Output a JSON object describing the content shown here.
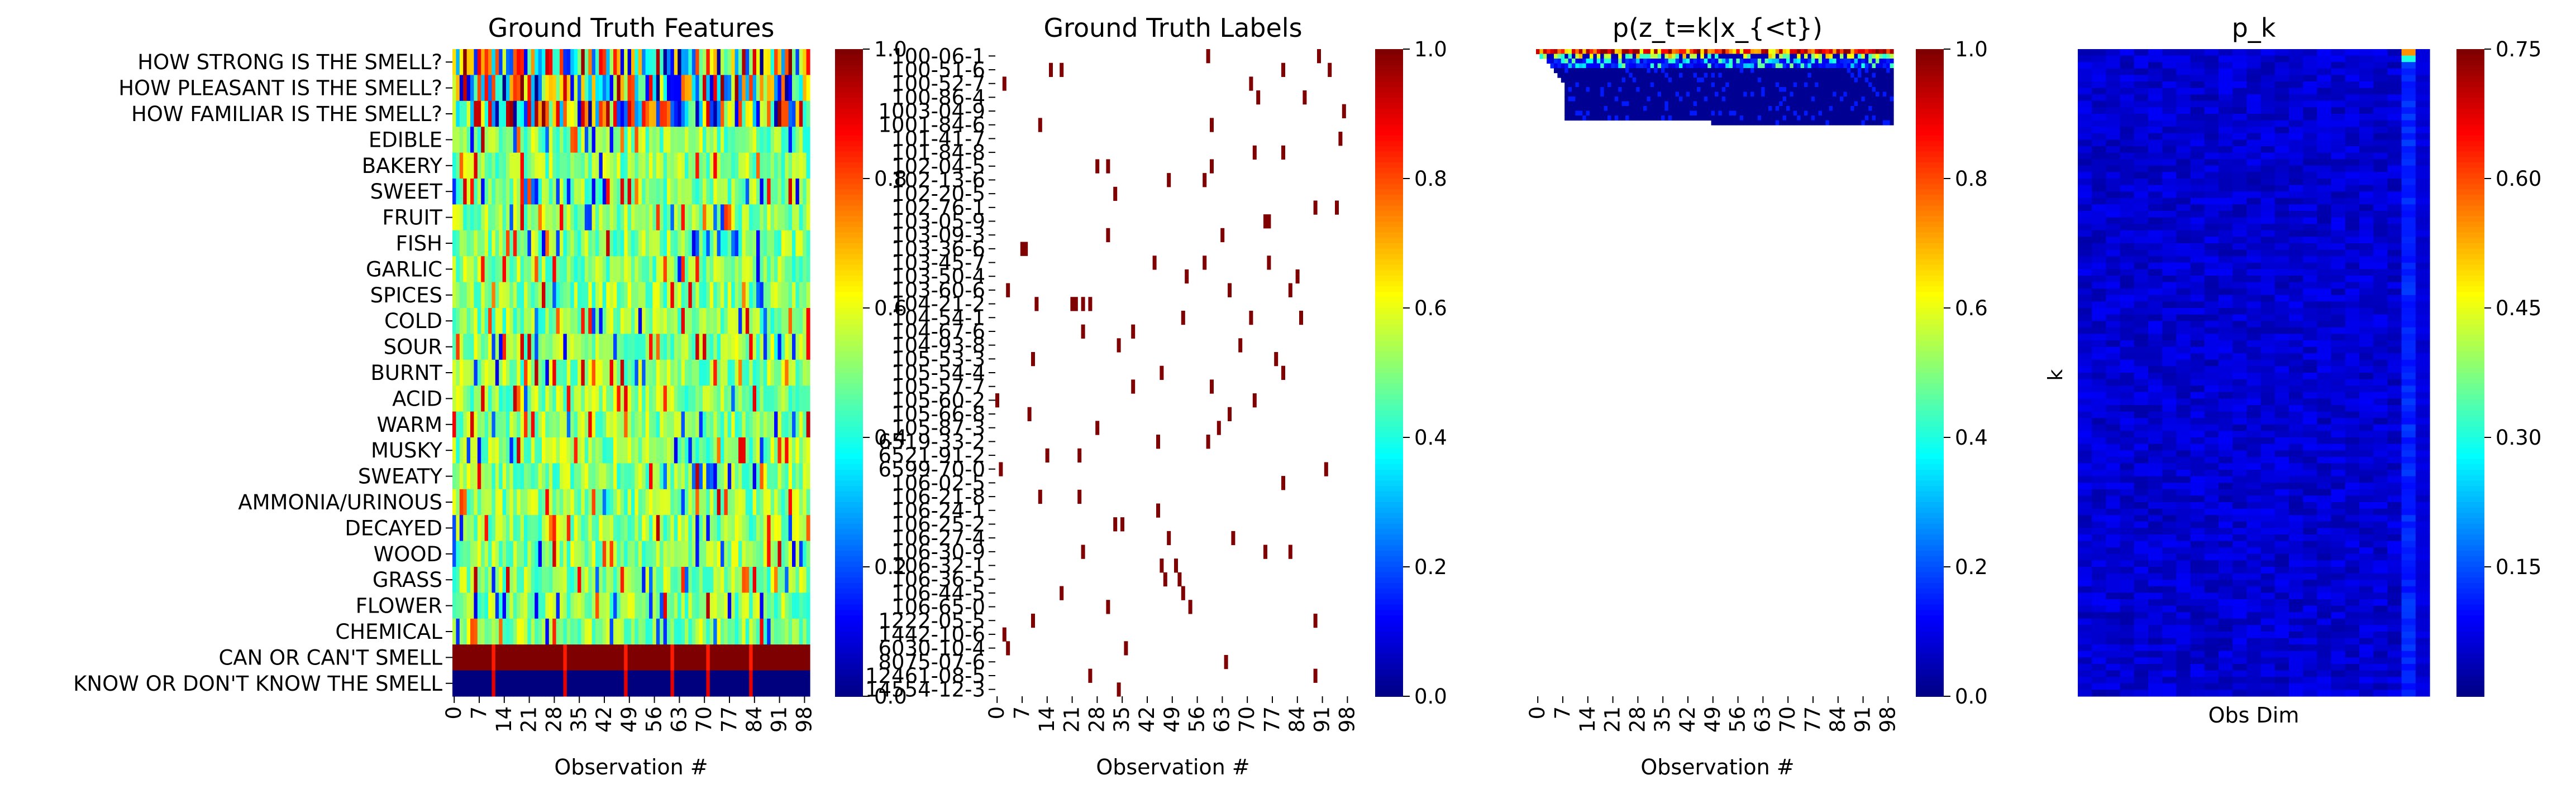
{
  "colormap": "jet",
  "colormap_stops": [
    "#00007f",
    "#0000ff",
    "#007fff",
    "#00ffff",
    "#7fff7f",
    "#ffff00",
    "#ff7f00",
    "#ff0000",
    "#7f0000"
  ],
  "chart_data": [
    {
      "type": "heatmap",
      "title": "Ground Truth Features",
      "xlabel": "Observation #",
      "ylabel": "",
      "x_tick_labels": [
        "0",
        "7",
        "14",
        "21",
        "28",
        "35",
        "42",
        "49",
        "56",
        "63",
        "70",
        "77",
        "84",
        "91",
        "98"
      ],
      "n_observations": 100,
      "row_labels": [
        "HOW STRONG IS THE SMELL?",
        "HOW PLEASANT IS THE SMELL?",
        "HOW FAMILIAR IS THE SMELL?",
        "EDIBLE",
        "BAKERY",
        "SWEET",
        "FRUIT",
        "FISH",
        "GARLIC",
        "SPICES",
        "COLD",
        "SOUR",
        "BURNT",
        "ACID",
        "WARM",
        "MUSKY",
        "SWEATY",
        "AMMONIA/URINOUS",
        "DECAYED",
        "WOOD",
        "GRASS",
        "FLOWER",
        "CHEMICAL",
        "CAN OR CAN'T SMELL",
        "KNOW OR DON'T KNOW THE SMELL"
      ],
      "row_typical_values": [
        0.5,
        0.5,
        0.45,
        0.5,
        0.5,
        0.5,
        0.5,
        0.5,
        0.5,
        0.5,
        0.5,
        0.5,
        0.5,
        0.5,
        0.5,
        0.5,
        0.5,
        0.5,
        0.5,
        0.5,
        0.5,
        0.5,
        0.5,
        1.0,
        0.0
      ],
      "colorbar": {
        "range": [
          0,
          1
        ],
        "ticks": [
          "0.0",
          "0.2",
          "0.4",
          "0.6",
          "0.8",
          "1.0"
        ]
      }
    },
    {
      "type": "heatmap",
      "title": "Ground Truth Labels",
      "xlabel": "Observation #",
      "ylabel": "",
      "x_tick_labels": [
        "0",
        "7",
        "14",
        "21",
        "28",
        "35",
        "42",
        "49",
        "56",
        "63",
        "70",
        "77",
        "84",
        "91",
        "98"
      ],
      "n_observations": 100,
      "row_labels": [
        "100-06-1",
        "100-51-6",
        "100-52-7",
        "100-86-4",
        "1003-04-9",
        "1001-84-6",
        "101-41-7",
        "101-84-8",
        "102-04-5",
        "102-13-6",
        "102-20-5",
        "102-76-1",
        "103-05-9",
        "103-09-3",
        "103-36-6",
        "103-45-7",
        "103-50-4",
        "103-60-6",
        "104-21-2",
        "104-54-1",
        "104-67-6",
        "104-93-8",
        "105-53-3",
        "105-54-4",
        "105-57-7",
        "105-60-2",
        "105-66-8",
        "105-87-3",
        "6519-33-2",
        "6521-91-2",
        "6599-70-0",
        "106-02-5",
        "106-21-8",
        "106-24-1",
        "106-25-2",
        "106-27-4",
        "106-30-9",
        "106-32-1",
        "106-36-5",
        "106-44-5",
        "106-65-0",
        "1222-05-5",
        "1442-10-6",
        "6030-10-4",
        "8075-07-6",
        "12461-08-5",
        "14554-12-3"
      ],
      "label_marks": [
        [
          0,
          59
        ],
        [
          0,
          90
        ],
        [
          1,
          15
        ],
        [
          1,
          18
        ],
        [
          1,
          93
        ],
        [
          1,
          80
        ],
        [
          2,
          2
        ],
        [
          2,
          71
        ],
        [
          3,
          73
        ],
        [
          3,
          86
        ],
        [
          4,
          97
        ],
        [
          5,
          12
        ],
        [
          5,
          60
        ],
        [
          6,
          96
        ],
        [
          7,
          72
        ],
        [
          7,
          80
        ],
        [
          8,
          28
        ],
        [
          8,
          31
        ],
        [
          8,
          60
        ],
        [
          9,
          58
        ],
        [
          9,
          48
        ],
        [
          10,
          33
        ],
        [
          11,
          95
        ],
        [
          11,
          89
        ],
        [
          12,
          75
        ],
        [
          12,
          76
        ],
        [
          13,
          31
        ],
        [
          13,
          63
        ],
        [
          14,
          8
        ],
        [
          14,
          7
        ],
        [
          15,
          44
        ],
        [
          15,
          58
        ],
        [
          15,
          76
        ],
        [
          16,
          53
        ],
        [
          16,
          84
        ],
        [
          17,
          3
        ],
        [
          17,
          65
        ],
        [
          17,
          82
        ],
        [
          18,
          11
        ],
        [
          18,
          24
        ],
        [
          18,
          21
        ],
        [
          18,
          22
        ],
        [
          18,
          26
        ],
        [
          19,
          71
        ],
        [
          19,
          52
        ],
        [
          19,
          85
        ],
        [
          20,
          24
        ],
        [
          20,
          38
        ],
        [
          21,
          68
        ],
        [
          21,
          34
        ],
        [
          22,
          78
        ],
        [
          22,
          10
        ],
        [
          23,
          46
        ],
        [
          23,
          80
        ],
        [
          24,
          38
        ],
        [
          24,
          60
        ],
        [
          25,
          0
        ],
        [
          25,
          72
        ],
        [
          26,
          9
        ],
        [
          26,
          65
        ],
        [
          27,
          28
        ],
        [
          27,
          62
        ],
        [
          28,
          59
        ],
        [
          28,
          45
        ],
        [
          29,
          14
        ],
        [
          29,
          23
        ],
        [
          30,
          1
        ],
        [
          30,
          92
        ],
        [
          31,
          80
        ],
        [
          32,
          23
        ],
        [
          32,
          12
        ],
        [
          33,
          45
        ],
        [
          34,
          35
        ],
        [
          34,
          33
        ],
        [
          35,
          48
        ],
        [
          35,
          66
        ],
        [
          36,
          24
        ],
        [
          36,
          75
        ],
        [
          36,
          82
        ],
        [
          37,
          46
        ],
        [
          37,
          50
        ],
        [
          38,
          47
        ],
        [
          38,
          51
        ],
        [
          39,
          18
        ],
        [
          39,
          52
        ],
        [
          40,
          31
        ],
        [
          40,
          54
        ],
        [
          41,
          10
        ],
        [
          41,
          89
        ],
        [
          42,
          2
        ],
        [
          43,
          3
        ],
        [
          43,
          36
        ],
        [
          44,
          64
        ],
        [
          45,
          26
        ],
        [
          45,
          89
        ],
        [
          46,
          34
        ]
      ],
      "colorbar": {
        "range": [
          0,
          1
        ],
        "ticks": [
          "0.0",
          "0.2",
          "0.4",
          "0.6",
          "0.8",
          "1.0"
        ]
      }
    },
    {
      "type": "heatmap",
      "title": "p(z_t=k|x_{<t})",
      "xlabel": "Observation #",
      "ylabel": "",
      "x_tick_labels": [
        "0",
        "7",
        "14",
        "21",
        "28",
        "35",
        "42",
        "49",
        "56",
        "63",
        "70",
        "77",
        "84",
        "91",
        "98"
      ],
      "n_observations": 100,
      "colorbar": {
        "range": [
          0,
          1
        ],
        "ticks": [
          "0.0",
          "0.2",
          "0.4",
          "0.6",
          "0.8",
          "1.0"
        ]
      }
    },
    {
      "type": "heatmap",
      "title": "p_k",
      "xlabel": "Obs Dim",
      "ylabel": "k",
      "colorbar": {
        "range": [
          0,
          0.75
        ],
        "ticks": [
          "0.15",
          "0.30",
          "0.45",
          "0.60",
          "0.75"
        ]
      }
    }
  ]
}
